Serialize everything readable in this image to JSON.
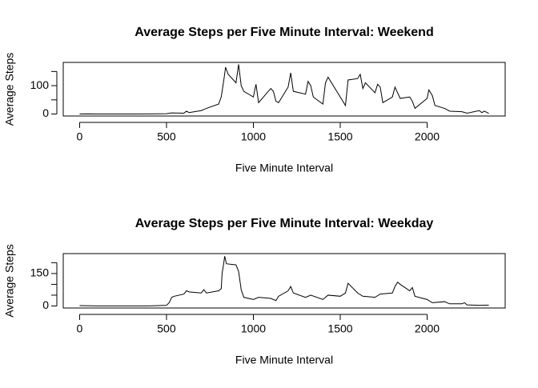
{
  "chart_data": [
    {
      "type": "line",
      "title": "Average Steps per Five Minute Interval: Weekend",
      "x_label": "Five Minute Interval",
      "y_label": "Average Steps",
      "xlim": [
        -94.2,
        2449.2
      ],
      "xticks": [
        0,
        500,
        1000,
        1500,
        2000
      ],
      "ylim": [
        -7,
        182
      ],
      "yticks": [
        0,
        100
      ],
      "minor_yticks": [
        50,
        150
      ],
      "x": [
        0,
        50,
        100,
        200,
        300,
        400,
        500,
        530,
        600,
        615,
        630,
        700,
        730,
        800,
        815,
        830,
        840,
        855,
        900,
        915,
        930,
        945,
        1000,
        1015,
        1030,
        1100,
        1115,
        1130,
        1145,
        1200,
        1215,
        1230,
        1300,
        1315,
        1330,
        1345,
        1400,
        1415,
        1430,
        1500,
        1530,
        1545,
        1600,
        1615,
        1630,
        1645,
        1700,
        1715,
        1730,
        1745,
        1800,
        1815,
        1830,
        1845,
        1900,
        1915,
        1930,
        2000,
        2010,
        2030,
        2045,
        2100,
        2130,
        2200,
        2230,
        2300,
        2315,
        2330,
        2355
      ],
      "series": [
        {
          "color": "#000000",
          "values": [
            0,
            0.5,
            0,
            0,
            0,
            0.5,
            1,
            4,
            3,
            10,
            5,
            12,
            20,
            35,
            60,
            120,
            165,
            140,
            110,
            175,
            100,
            80,
            60,
            105,
            40,
            90,
            80,
            45,
            40,
            95,
            145,
            80,
            70,
            115,
            100,
            60,
            35,
            110,
            130,
            60,
            30,
            120,
            125,
            140,
            90,
            110,
            75,
            105,
            95,
            40,
            60,
            95,
            75,
            55,
            60,
            45,
            20,
            55,
            85,
            65,
            30,
            20,
            10,
            8,
            3,
            12,
            5,
            10,
            2
          ]
        }
      ]
    },
    {
      "type": "line",
      "title": "Average Steps per Five Minute Interval: Weekday",
      "x_label": "Five Minute Interval",
      "y_label": "Average Steps",
      "xlim": [
        -94.2,
        2449.2
      ],
      "xticks": [
        0,
        500,
        1000,
        1500,
        2000
      ],
      "ylim": [
        -9.3,
        242
      ],
      "yticks": [
        0,
        150
      ],
      "minor_yticks": [
        50,
        100,
        200
      ],
      "x": [
        0,
        100,
        200,
        300,
        400,
        500,
        515,
        530,
        545,
        600,
        615,
        630,
        700,
        715,
        730,
        800,
        815,
        820,
        830,
        835,
        845,
        900,
        915,
        930,
        945,
        1000,
        1030,
        1100,
        1130,
        1145,
        1200,
        1215,
        1230,
        1300,
        1330,
        1400,
        1430,
        1500,
        1530,
        1545,
        1600,
        1630,
        1700,
        1730,
        1800,
        1815,
        1830,
        1845,
        1900,
        1915,
        1930,
        2000,
        2030,
        2100,
        2130,
        2200,
        2215,
        2230,
        2300,
        2355
      ],
      "series": [
        {
          "color": "#000000",
          "values": [
            2,
            0.5,
            0.3,
            0.5,
            0.5,
            3,
            15,
            40,
            45,
            55,
            70,
            65,
            60,
            75,
            60,
            70,
            80,
            150,
            200,
            230,
            195,
            190,
            160,
            75,
            40,
            30,
            40,
            35,
            25,
            45,
            70,
            90,
            60,
            40,
            50,
            30,
            50,
            45,
            60,
            105,
            60,
            45,
            40,
            55,
            60,
            90,
            110,
            100,
            70,
            85,
            45,
            30,
            15,
            20,
            10,
            10,
            15,
            5,
            3,
            4
          ]
        }
      ]
    }
  ]
}
